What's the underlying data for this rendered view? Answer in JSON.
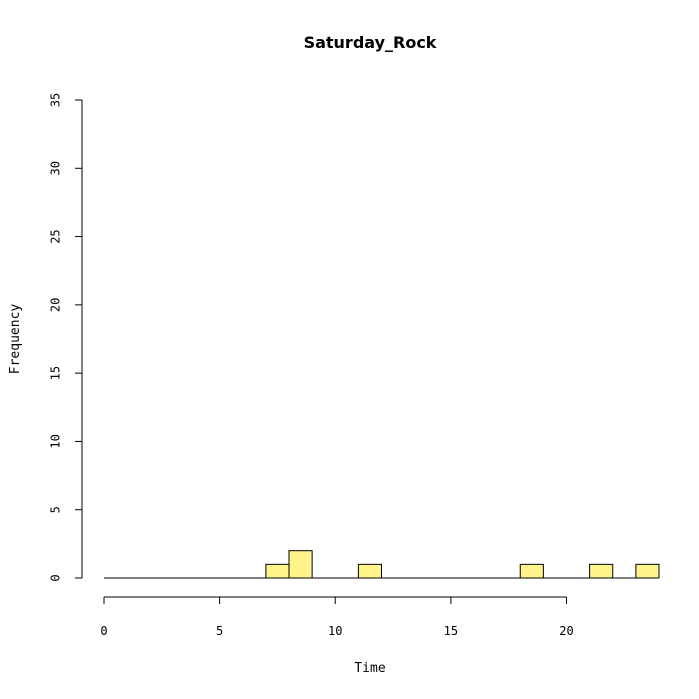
{
  "chart_data": {
    "type": "bar",
    "title": "Saturday_Rock",
    "xlabel": "Time",
    "ylabel": "Frequency",
    "xlim": [
      0,
      24
    ],
    "ylim": [
      0,
      35
    ],
    "x_ticks": [
      0,
      5,
      10,
      15,
      20
    ],
    "y_ticks": [
      0,
      5,
      10,
      15,
      20,
      25,
      30,
      35
    ],
    "bin_width": 1,
    "bins_start": [
      0,
      1,
      2,
      3,
      4,
      5,
      6,
      7,
      8,
      9,
      10,
      11,
      12,
      13,
      14,
      15,
      16,
      17,
      18,
      19,
      20,
      21,
      22,
      23
    ],
    "values": [
      0,
      0,
      0,
      0,
      0,
      0,
      0,
      1,
      2,
      0,
      0,
      1,
      0,
      0,
      0,
      0,
      0,
      0,
      1,
      0,
      0,
      1,
      0,
      1
    ],
    "bar_color": "#fff38a",
    "grid": false
  }
}
